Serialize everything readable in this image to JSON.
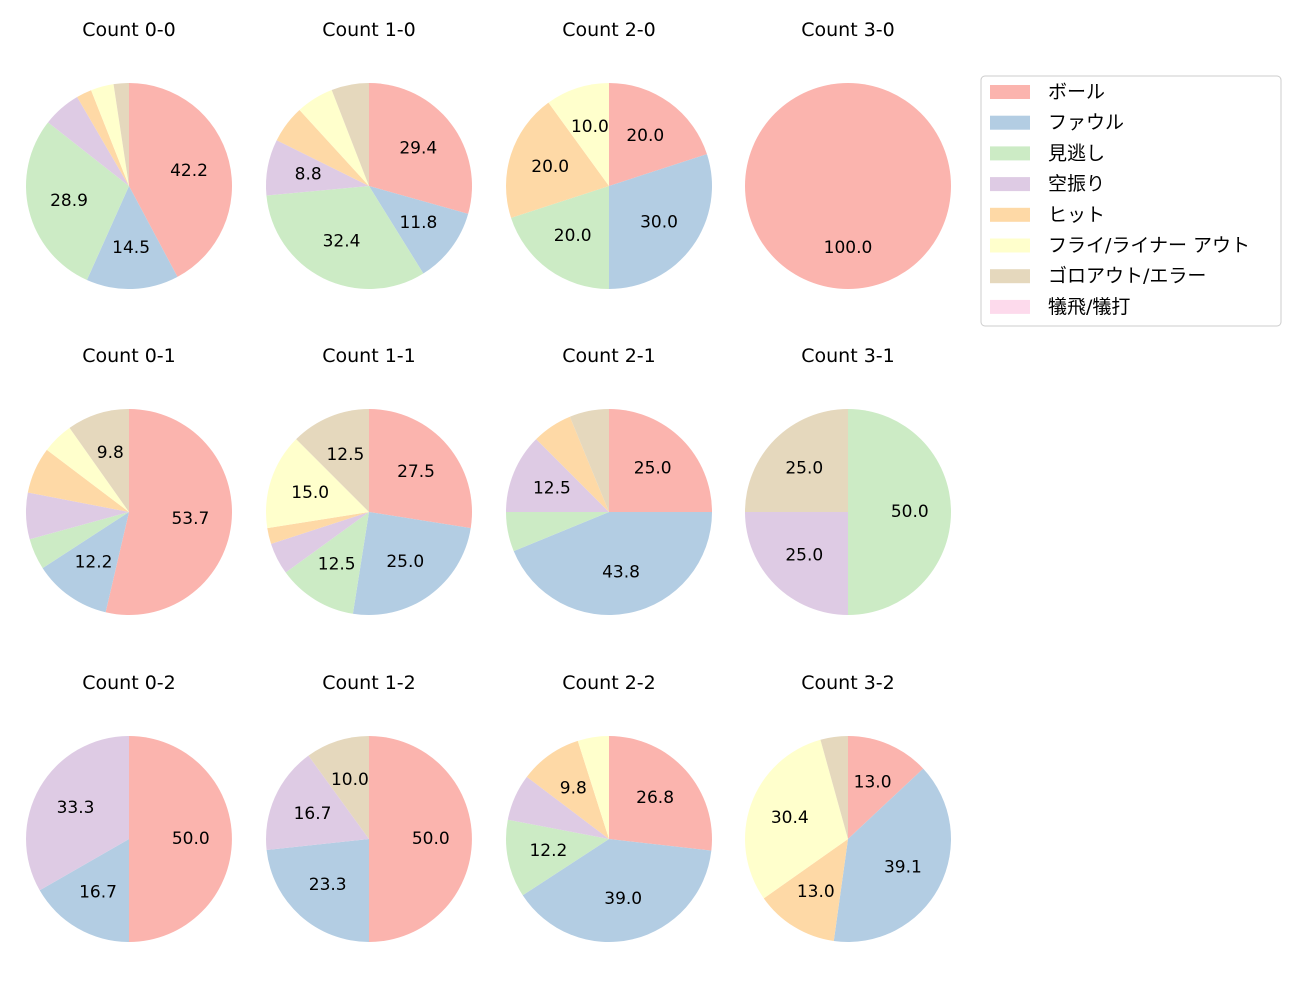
{
  "chart_data": {
    "type": "pie",
    "legend": {
      "placement": "top-right",
      "entries": [
        {
          "label": "ボール",
          "color": "#fbb4ae"
        },
        {
          "label": "ファウル",
          "color": "#b3cde3"
        },
        {
          "label": "見逃し",
          "color": "#ccebc5"
        },
        {
          "label": "空振り",
          "color": "#decbe4"
        },
        {
          "label": "ヒット",
          "color": "#fed9a6"
        },
        {
          "label": "フライ/ライナー アウト",
          "color": "#ffffcc"
        },
        {
          "label": "ゴロアウト/エラー",
          "color": "#e5d8bd"
        },
        {
          "label": "犠飛/犠打",
          "color": "#fddaec"
        }
      ]
    },
    "pies": [
      {
        "title": "Count 0-0",
        "values": [
          42.2,
          14.5,
          28.9,
          6.0,
          2.4,
          3.6,
          2.4,
          0
        ],
        "labels": [
          "42.2",
          "14.5",
          "28.9",
          "",
          "",
          "",
          "",
          ""
        ]
      },
      {
        "title": "Count 1-0",
        "values": [
          29.4,
          11.8,
          32.4,
          8.8,
          5.9,
          5.9,
          5.9,
          0
        ],
        "labels": [
          "29.4",
          "11.8",
          "32.4",
          "8.8",
          "",
          "",
          "",
          ""
        ]
      },
      {
        "title": "Count 2-0",
        "values": [
          20.0,
          30.0,
          20.0,
          0,
          20.0,
          10.0,
          0,
          0
        ],
        "labels": [
          "20.0",
          "30.0",
          "20.0",
          "",
          "20.0",
          "10.0",
          "",
          ""
        ]
      },
      {
        "title": "Count 3-0",
        "values": [
          100.0,
          0,
          0,
          0,
          0,
          0,
          0,
          0
        ],
        "labels": [
          "100.0",
          "",
          "",
          "",
          "",
          "",
          "",
          ""
        ]
      },
      {
        "title": "Count 0-1",
        "values": [
          53.7,
          12.2,
          4.9,
          7.3,
          7.3,
          4.9,
          9.8,
          0
        ],
        "labels": [
          "53.7",
          "12.2",
          "",
          "",
          "",
          "",
          "9.8",
          ""
        ]
      },
      {
        "title": "Count 1-1",
        "values": [
          27.5,
          25.0,
          12.5,
          5.0,
          2.5,
          15.0,
          12.5,
          0
        ],
        "labels": [
          "27.5",
          "25.0",
          "12.5",
          "",
          "",
          "15.0",
          "12.5",
          ""
        ]
      },
      {
        "title": "Count 2-1",
        "values": [
          25.0,
          43.8,
          6.2,
          12.5,
          6.3,
          0,
          6.2,
          0
        ],
        "labels": [
          "25.0",
          "43.8",
          "",
          "12.5",
          "",
          "",
          "",
          ""
        ]
      },
      {
        "title": "Count 3-1",
        "values": [
          0,
          0,
          50.0,
          25.0,
          0,
          0,
          25.0,
          0
        ],
        "labels": [
          "",
          "",
          "50.0",
          "25.0",
          "",
          "",
          "25.0",
          ""
        ]
      },
      {
        "title": "Count 0-2",
        "values": [
          50.0,
          16.7,
          0,
          33.3,
          0,
          0,
          0,
          0
        ],
        "labels": [
          "50.0",
          "16.7",
          "",
          "33.3",
          "",
          "",
          "",
          ""
        ]
      },
      {
        "title": "Count 1-2",
        "values": [
          50.0,
          23.3,
          0,
          16.7,
          0,
          0,
          10.0,
          0
        ],
        "labels": [
          "50.0",
          "23.3",
          "",
          "16.7",
          "",
          "",
          "10.0",
          ""
        ]
      },
      {
        "title": "Count 2-2",
        "values": [
          26.8,
          39.0,
          12.2,
          7.3,
          9.8,
          4.9,
          0,
          0
        ],
        "labels": [
          "26.8",
          "39.0",
          "12.2",
          "",
          "9.8",
          "",
          "",
          ""
        ]
      },
      {
        "title": "Count 3-2",
        "values": [
          13.0,
          39.1,
          0,
          0,
          13.0,
          30.4,
          4.3,
          0
        ],
        "labels": [
          "13.0",
          "39.1",
          "",
          "",
          "13.0",
          "30.4",
          "",
          ""
        ]
      }
    ]
  }
}
